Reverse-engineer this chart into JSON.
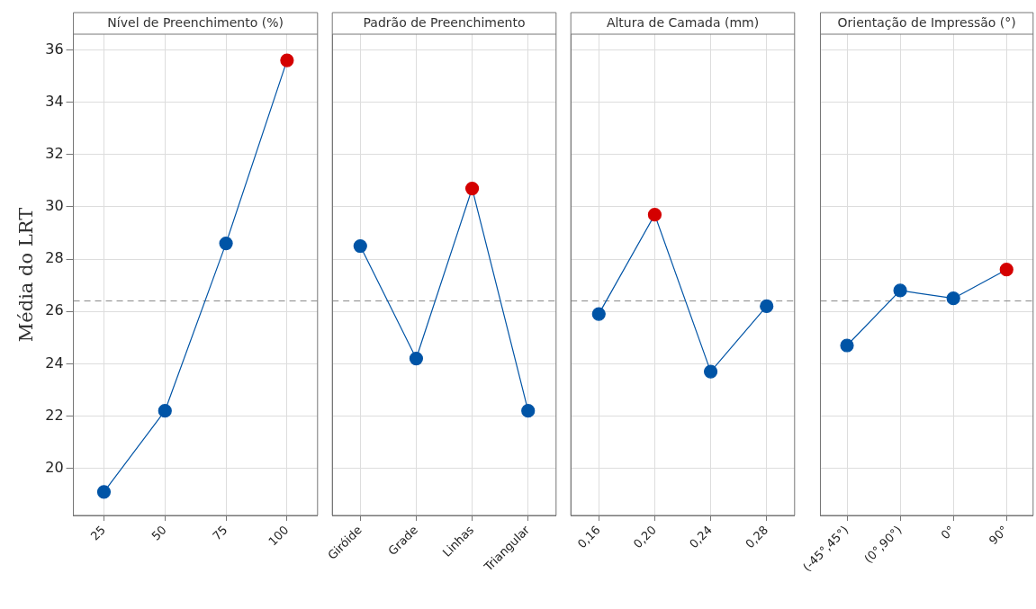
{
  "chart_data": [
    {
      "type": "line",
      "title": "Nível de Preenchimento (%)",
      "ylabel": "Média do LRT",
      "categories": [
        "25",
        "50",
        "75",
        "100"
      ],
      "values": [
        19.1,
        22.2,
        28.6,
        35.6
      ],
      "color": "#0054a6",
      "colors": [
        "#0054a6",
        "#0054a6",
        "#0054a6",
        "#d40000"
      ],
      "marker": "circle",
      "ylim": [
        18.2,
        36.6
      ],
      "yticks": [
        20,
        22,
        24,
        26,
        28,
        30,
        32,
        34,
        36
      ],
      "grid": true,
      "legend": false,
      "ref_lines": [
        {
          "axis": "y",
          "value": 26.4,
          "color": "#888888",
          "line_style": "dashed"
        }
      ]
    },
    {
      "type": "line",
      "title": "Padrão de Preenchimento",
      "categories": [
        "Giróide",
        "Grade",
        "Linhas",
        "Triangular"
      ],
      "values": [
        28.5,
        24.2,
        30.7,
        22.2
      ],
      "color": "#0054a6",
      "colors": [
        "#0054a6",
        "#0054a6",
        "#d40000",
        "#0054a6"
      ],
      "marker": "circle",
      "ylim": [
        18.2,
        36.6
      ],
      "yticks": [
        20,
        22,
        24,
        26,
        28,
        30,
        32,
        34,
        36
      ],
      "grid": true,
      "legend": false,
      "tick_labels": "x",
      "ref_lines": [
        {
          "axis": "y",
          "value": 26.4,
          "color": "#888888",
          "line_style": "dashed"
        }
      ]
    },
    {
      "type": "line",
      "title": "Altura de Camada (mm)",
      "categories": [
        "0,16",
        "0,20",
        "0,24",
        "0,28"
      ],
      "values": [
        25.9,
        29.7,
        23.7,
        26.2
      ],
      "color": "#0054a6",
      "colors": [
        "#0054a6",
        "#d40000",
        "#0054a6",
        "#0054a6"
      ],
      "marker": "circle",
      "ylim": [
        18.2,
        36.6
      ],
      "yticks": [
        20,
        22,
        24,
        26,
        28,
        30,
        32,
        34,
        36
      ],
      "grid": true,
      "legend": false,
      "tick_labels": "x",
      "ref_lines": [
        {
          "axis": "y",
          "value": 26.4,
          "color": "#888888",
          "line_style": "dashed"
        }
      ]
    },
    {
      "type": "line",
      "title": "Orientação de Impressão (°)",
      "categories": [
        "(-45°,45°)",
        "(0°,90°)",
        "0°",
        "90°"
      ],
      "values": [
        24.7,
        26.8,
        26.5,
        27.6
      ],
      "color": "#0054a6",
      "colors": [
        "#0054a6",
        "#0054a6",
        "#0054a6",
        "#d40000"
      ],
      "marker": "circle",
      "ylim": [
        18.2,
        36.6
      ],
      "yticks": [
        20,
        22,
        24,
        26,
        28,
        30,
        32,
        34,
        36
      ],
      "grid": true,
      "legend": false,
      "tick_labels": "x",
      "ref_lines": [
        {
          "axis": "y",
          "value": 26.4,
          "color": "#888888",
          "line_style": "dashed"
        }
      ]
    }
  ]
}
